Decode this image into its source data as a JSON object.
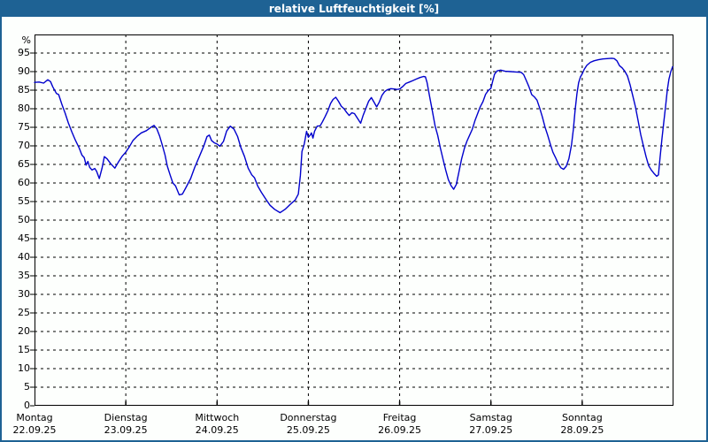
{
  "window": {
    "title": "relative Luftfeuchtigkeit [%]"
  },
  "colors": {
    "titlebar": "#1e6294",
    "window_border": "#1e6294",
    "background": "#fdfffd",
    "grid": "#000000",
    "text": "#000000",
    "line": "#0000cd"
  },
  "chart_data": {
    "type": "line",
    "title": "relative Luftfeuchtigkeit [%]",
    "ylabel_unit": "%",
    "ylim": [
      0,
      100
    ],
    "yticks": [
      95,
      90,
      85,
      80,
      75,
      70,
      65,
      60,
      55,
      50,
      45,
      40,
      35,
      30,
      25,
      20,
      15,
      10,
      5,
      0
    ],
    "grid": "dashed",
    "legend": "none",
    "x_axis": {
      "unit": "days",
      "days": [
        {
          "name": "Montag",
          "date": "22.09.25"
        },
        {
          "name": "Dienstag",
          "date": "23.09.25"
        },
        {
          "name": "Mittwoch",
          "date": "24.09.25"
        },
        {
          "name": "Donnerstag",
          "date": "25.09.25"
        },
        {
          "name": "Freitag",
          "date": "26.09.25"
        },
        {
          "name": "Samstag",
          "date": "27.09.25"
        },
        {
          "name": "Sonntag",
          "date": "28.09.25"
        }
      ]
    },
    "series": [
      {
        "name": "relative Luftfeuchtigkeit",
        "color": "#0000cd",
        "points": [
          [
            0,
            87.1
          ],
          [
            0.05,
            87.2
          ],
          [
            0.1,
            86.9
          ],
          [
            0.145,
            87.8
          ],
          [
            0.175,
            87.3
          ],
          [
            0.2,
            85.9
          ],
          [
            0.24,
            84.1
          ],
          [
            0.265,
            83.8
          ],
          [
            0.3,
            81.2
          ],
          [
            0.335,
            78.8
          ],
          [
            0.37,
            76.2
          ],
          [
            0.41,
            73.7
          ],
          [
            0.45,
            71.4
          ],
          [
            0.49,
            69.4
          ],
          [
            0.52,
            67.5
          ],
          [
            0.545,
            66.8
          ],
          [
            0.565,
            64.8
          ],
          [
            0.585,
            65.8
          ],
          [
            0.605,
            64.2
          ],
          [
            0.63,
            63.5
          ],
          [
            0.66,
            63.9
          ],
          [
            0.68,
            63.2
          ],
          [
            0.71,
            61.2
          ],
          [
            0.74,
            64
          ],
          [
            0.765,
            67.1
          ],
          [
            0.795,
            66.5
          ],
          [
            0.835,
            65.2
          ],
          [
            0.88,
            64
          ],
          [
            0.92,
            65.7
          ],
          [
            0.96,
            67.2
          ],
          [
            1,
            68.3
          ],
          [
            1.04,
            69.8
          ],
          [
            1.08,
            71.5
          ],
          [
            1.125,
            72.6
          ],
          [
            1.17,
            73.5
          ],
          [
            1.225,
            74.1
          ],
          [
            1.27,
            74.9
          ],
          [
            1.31,
            75.5
          ],
          [
            1.34,
            74.6
          ],
          [
            1.37,
            72.7
          ],
          [
            1.4,
            70.2
          ],
          [
            1.43,
            67.5
          ],
          [
            1.455,
            64.5
          ],
          [
            1.485,
            62.2
          ],
          [
            1.515,
            60
          ],
          [
            1.545,
            59.2
          ],
          [
            1.585,
            56.8
          ],
          [
            1.62,
            57
          ],
          [
            1.66,
            58.8
          ],
          [
            1.71,
            61.2
          ],
          [
            1.755,
            64.2
          ],
          [
            1.805,
            67.1
          ],
          [
            1.855,
            70
          ],
          [
            1.89,
            72.5
          ],
          [
            1.915,
            72.9
          ],
          [
            1.94,
            71.4
          ],
          [
            1.97,
            70.8
          ],
          [
            2,
            70.5
          ],
          [
            2.03,
            69.9
          ],
          [
            2.07,
            71.2
          ],
          [
            2.105,
            74
          ],
          [
            2.145,
            75.3
          ],
          [
            2.185,
            74.5
          ],
          [
            2.225,
            72.5
          ],
          [
            2.26,
            69.6
          ],
          [
            2.3,
            67.2
          ],
          [
            2.34,
            64
          ],
          [
            2.38,
            62.2
          ],
          [
            2.41,
            61.4
          ],
          [
            2.445,
            59.2
          ],
          [
            2.485,
            57.5
          ],
          [
            2.535,
            55.6
          ],
          [
            2.58,
            54
          ],
          [
            2.63,
            52.9
          ],
          [
            2.69,
            52
          ],
          [
            2.75,
            53
          ],
          [
            2.805,
            54.3
          ],
          [
            2.855,
            55.4
          ],
          [
            2.89,
            57
          ],
          [
            2.912,
            62
          ],
          [
            2.93,
            68.5
          ],
          [
            2.955,
            70.5
          ],
          [
            2.98,
            73.9
          ],
          [
            3,
            72.3
          ],
          [
            3.02,
            72.9
          ],
          [
            3.034,
            73.5
          ],
          [
            3.05,
            72.1
          ],
          [
            3.068,
            73.9
          ],
          [
            3.097,
            75.3
          ],
          [
            3.13,
            75.4
          ],
          [
            3.155,
            76.5
          ],
          [
            3.184,
            77.9
          ],
          [
            3.213,
            79.4
          ],
          [
            3.243,
            81.4
          ],
          [
            3.27,
            82.5
          ],
          [
            3.3,
            83.1
          ],
          [
            3.33,
            82
          ],
          [
            3.36,
            80.7
          ],
          [
            3.39,
            80
          ],
          [
            3.42,
            79
          ],
          [
            3.447,
            78.2
          ],
          [
            3.476,
            78.9
          ],
          [
            3.505,
            78.7
          ],
          [
            3.534,
            77.6
          ],
          [
            3.573,
            76.1
          ],
          [
            3.6,
            78.2
          ],
          [
            3.63,
            80.1
          ],
          [
            3.66,
            82
          ],
          [
            3.69,
            83
          ],
          [
            3.718,
            81.8
          ],
          [
            3.748,
            80.5
          ],
          [
            3.777,
            81.8
          ],
          [
            3.806,
            83.6
          ],
          [
            3.835,
            84.6
          ],
          [
            3.864,
            85.1
          ],
          [
            3.903,
            85.4
          ],
          [
            3.942,
            85.3
          ],
          [
            3.971,
            85.2
          ],
          [
            4,
            85.3
          ],
          [
            4.03,
            85.9
          ],
          [
            4.068,
            86.8
          ],
          [
            4.107,
            87.2
          ],
          [
            4.146,
            87.6
          ],
          [
            4.184,
            88
          ],
          [
            4.223,
            88.4
          ],
          [
            4.262,
            88.7
          ],
          [
            4.282,
            88.6
          ],
          [
            4.301,
            87
          ],
          [
            4.33,
            83.1
          ],
          [
            4.359,
            79.3
          ],
          [
            4.388,
            75.4
          ],
          [
            4.417,
            72.8
          ],
          [
            4.447,
            69.3
          ],
          [
            4.476,
            66.3
          ],
          [
            4.505,
            63.4
          ],
          [
            4.534,
            60.9
          ],
          [
            4.563,
            59.3
          ],
          [
            4.592,
            58.3
          ],
          [
            4.621,
            59.6
          ],
          [
            4.65,
            63
          ],
          [
            4.679,
            66.5
          ],
          [
            4.709,
            69.3
          ],
          [
            4.738,
            71.3
          ],
          [
            4.767,
            72.9
          ],
          [
            4.796,
            74.5
          ],
          [
            4.825,
            76.8
          ],
          [
            4.854,
            78.7
          ],
          [
            4.883,
            80.5
          ],
          [
            4.913,
            81.9
          ],
          [
            4.942,
            83.9
          ],
          [
            4.971,
            84.9
          ],
          [
            5,
            85.5
          ],
          [
            5.02,
            87.5
          ],
          [
            5.04,
            89.3
          ],
          [
            5.068,
            90.2
          ],
          [
            5.107,
            90.4
          ],
          [
            5.155,
            90.1
          ],
          [
            5.214,
            90
          ],
          [
            5.272,
            89.9
          ],
          [
            5.33,
            89.8
          ],
          [
            5.359,
            89.2
          ],
          [
            5.388,
            87.6
          ],
          [
            5.417,
            85.9
          ],
          [
            5.447,
            83.8
          ],
          [
            5.476,
            83.2
          ],
          [
            5.505,
            82.3
          ],
          [
            5.534,
            80.2
          ],
          [
            5.563,
            77.8
          ],
          [
            5.592,
            75.1
          ],
          [
            5.621,
            72.9
          ],
          [
            5.65,
            70.5
          ],
          [
            5.679,
            68.3
          ],
          [
            5.709,
            66.8
          ],
          [
            5.738,
            65.2
          ],
          [
            5.767,
            64.1
          ],
          [
            5.796,
            63.7
          ],
          [
            5.825,
            64.5
          ],
          [
            5.854,
            66.5
          ],
          [
            5.883,
            70.3
          ],
          [
            5.903,
            74.5
          ],
          [
            5.922,
            79.5
          ],
          [
            5.942,
            84
          ],
          [
            5.961,
            87
          ],
          [
            5.981,
            88.6
          ],
          [
            6,
            89.4
          ],
          [
            6.022,
            90.6
          ],
          [
            6.051,
            91.7
          ],
          [
            6.09,
            92.5
          ],
          [
            6.128,
            92.9
          ],
          [
            6.177,
            93.2
          ],
          [
            6.225,
            93.4
          ],
          [
            6.273,
            93.5
          ],
          [
            6.322,
            93.6
          ],
          [
            6.351,
            93.5
          ],
          [
            6.38,
            92.9
          ],
          [
            6.409,
            91.6
          ],
          [
            6.438,
            91
          ],
          [
            6.467,
            90.1
          ],
          [
            6.496,
            88.8
          ],
          [
            6.525,
            86.4
          ],
          [
            6.554,
            83.5
          ],
          [
            6.583,
            80.5
          ],
          [
            6.612,
            76.8
          ],
          [
            6.641,
            73
          ],
          [
            6.67,
            70
          ],
          [
            6.699,
            67.1
          ],
          [
            6.728,
            64.7
          ],
          [
            6.757,
            63.5
          ],
          [
            6.786,
            62.6
          ],
          [
            6.816,
            61.8
          ],
          [
            6.835,
            62.2
          ],
          [
            6.854,
            67
          ],
          [
            6.874,
            72
          ],
          [
            6.893,
            76.3
          ],
          [
            6.913,
            80.5
          ],
          [
            6.932,
            85
          ],
          [
            6.951,
            88
          ],
          [
            6.971,
            90
          ],
          [
            6.99,
            91.3
          ]
        ]
      }
    ]
  }
}
